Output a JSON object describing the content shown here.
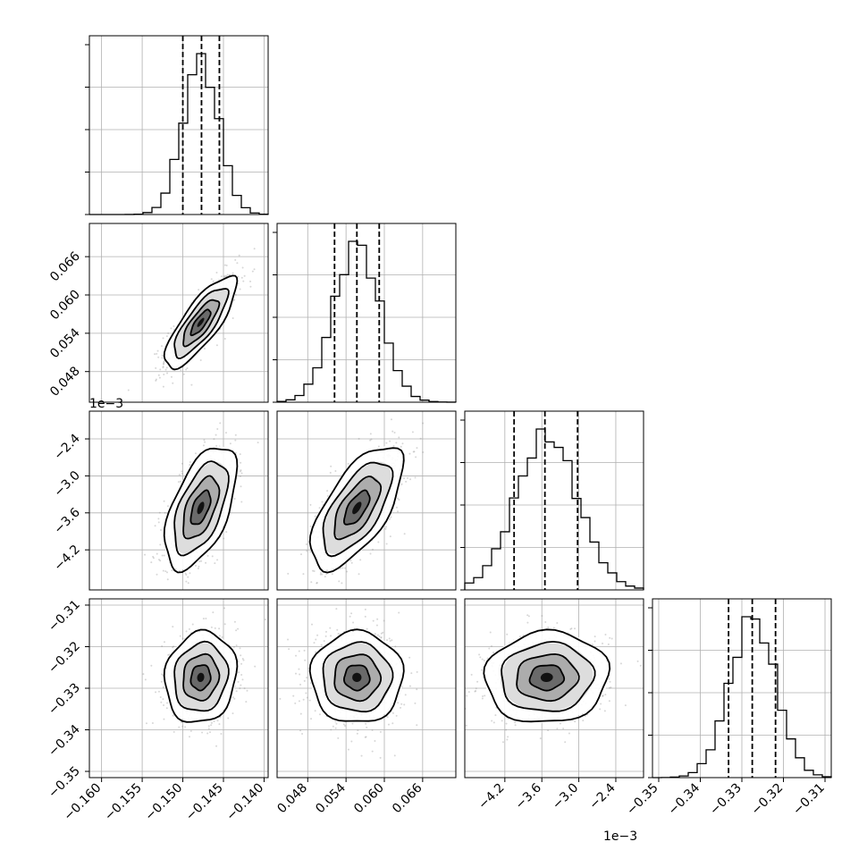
{
  "chart_data": {
    "type": "corner",
    "parameters": [
      {
        "ticks": [
          "−0.160",
          "−0.155",
          "−0.150",
          "−0.145",
          "−0.140"
        ],
        "tick_values": [
          -0.16,
          -0.155,
          -0.15,
          -0.145,
          -0.14
        ],
        "range": [
          -0.1615,
          -0.1395
        ],
        "mean": -0.1478,
        "sd": 0.0022,
        "quantiles": [
          -0.15,
          -0.1477,
          -0.1455
        ]
      },
      {
        "ticks": [
          "0.048",
          "0.054",
          "0.060",
          "0.066"
        ],
        "tick_values": [
          0.048,
          0.054,
          0.06,
          0.066
        ],
        "range": [
          0.0432,
          0.0712
        ],
        "mean": 0.0557,
        "sd": 0.0036,
        "quantiles": [
          0.0522,
          0.0557,
          0.0592
        ]
      },
      {
        "ticks": [
          "−4.2",
          "−3.6",
          "−3.0",
          "−2.4"
        ],
        "tick_values": [
          -4.2,
          -3.6,
          -3.0,
          -2.4
        ],
        "range": [
          -4.85,
          -1.95
        ],
        "mean": -3.52,
        "sd": 0.5,
        "quantiles": [
          -4.05,
          -3.55,
          -3.02
        ],
        "offset_label": "1e−3"
      },
      {
        "ticks": [
          "−0.35",
          "−0.34",
          "−0.33",
          "−0.32",
          "−0.31"
        ],
        "tick_values": [
          -0.35,
          -0.34,
          -0.33,
          -0.32,
          -0.31
        ],
        "range": [
          -0.3515,
          -0.3085
        ],
        "mean": -0.3274,
        "sd": 0.0055,
        "quantiles": [
          -0.3332,
          -0.3275,
          -0.3219
        ]
      }
    ],
    "correlations": [
      [
        1,
        0.8,
        0.55,
        0.1
      ],
      [
        0.8,
        1,
        0.65,
        0.0
      ],
      [
        0.55,
        0.65,
        1,
        0.05
      ],
      [
        0.1,
        0.0,
        0.05,
        1
      ]
    ],
    "grid": true,
    "quantile_lines": "dashed"
  },
  "colors": {
    "points": "#8c8c8c",
    "lines": "#000000",
    "grid": "#b0b0b0"
  }
}
